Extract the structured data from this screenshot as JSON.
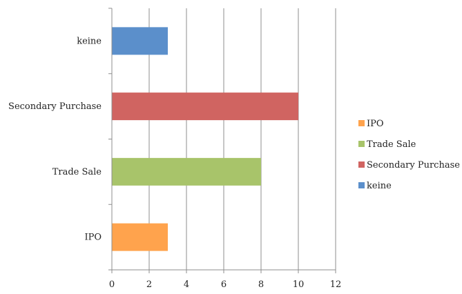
{
  "chart_data": {
    "type": "bar",
    "orientation": "horizontal",
    "categories": [
      "IPO",
      "Trade Sale",
      "Secondary Purchase",
      "keine"
    ],
    "values": [
      3,
      8,
      10,
      3
    ],
    "colors": [
      "#FFA34D",
      "#A8C46A",
      "#D06461",
      "#5B8FCB"
    ],
    "xlim": [
      0,
      12
    ],
    "xticks": [
      0,
      2,
      4,
      6,
      8,
      10,
      12
    ],
    "grid": true,
    "legend_position": "right",
    "legend": [
      "IPO",
      "Trade Sale",
      "Secondary Purchase",
      "keine"
    ],
    "title": "",
    "xlabel": "",
    "ylabel": ""
  }
}
